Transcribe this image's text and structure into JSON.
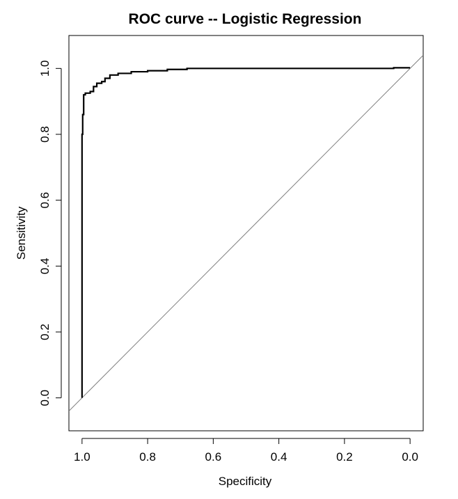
{
  "chart_data": {
    "type": "line",
    "title": "ROC curve -- Logistic Regression",
    "xlabel": "Specificity",
    "ylabel": "Sensitivity",
    "xlim": [
      1.04,
      -0.04
    ],
    "ylim": [
      -0.1,
      1.1
    ],
    "x_reversed": true,
    "grid": false,
    "legend": "none",
    "x_ticks": [
      1.0,
      0.8,
      0.6,
      0.4,
      0.2,
      0.0
    ],
    "x_tick_labels": [
      "1.0",
      "0.8",
      "0.6",
      "0.4",
      "0.2",
      "0.0"
    ],
    "y_ticks": [
      0.0,
      0.2,
      0.4,
      0.6,
      0.8,
      1.0
    ],
    "y_tick_labels": [
      "0.0",
      "0.2",
      "0.4",
      "0.6",
      "0.8",
      "1.0"
    ],
    "series": [
      {
        "values": [
          [
            1.0,
            0.0
          ],
          [
            1.0,
            0.8
          ],
          [
            0.998,
            0.8
          ],
          [
            0.998,
            0.86
          ],
          [
            0.995,
            0.86
          ],
          [
            0.995,
            0.92
          ],
          [
            0.99,
            0.92
          ],
          [
            0.99,
            0.925
          ],
          [
            0.975,
            0.925
          ],
          [
            0.975,
            0.93
          ],
          [
            0.965,
            0.93
          ],
          [
            0.965,
            0.945
          ],
          [
            0.955,
            0.945
          ],
          [
            0.955,
            0.955
          ],
          [
            0.94,
            0.955
          ],
          [
            0.94,
            0.96
          ],
          [
            0.93,
            0.96
          ],
          [
            0.93,
            0.97
          ],
          [
            0.915,
            0.97
          ],
          [
            0.915,
            0.98
          ],
          [
            0.89,
            0.98
          ],
          [
            0.89,
            0.985
          ],
          [
            0.85,
            0.985
          ],
          [
            0.85,
            0.99
          ],
          [
            0.8,
            0.99
          ],
          [
            0.8,
            0.993
          ],
          [
            0.74,
            0.993
          ],
          [
            0.74,
            0.997
          ],
          [
            0.68,
            0.997
          ],
          [
            0.68,
            1.0
          ],
          [
            0.05,
            1.0
          ],
          [
            0.05,
            1.002
          ],
          [
            0.0,
            1.002
          ]
        ],
        "color": "#000000"
      }
    ],
    "reference_line": {
      "from": [
        1.0,
        0.0
      ],
      "to": [
        0.0,
        1.0
      ],
      "color": "#808080"
    }
  }
}
